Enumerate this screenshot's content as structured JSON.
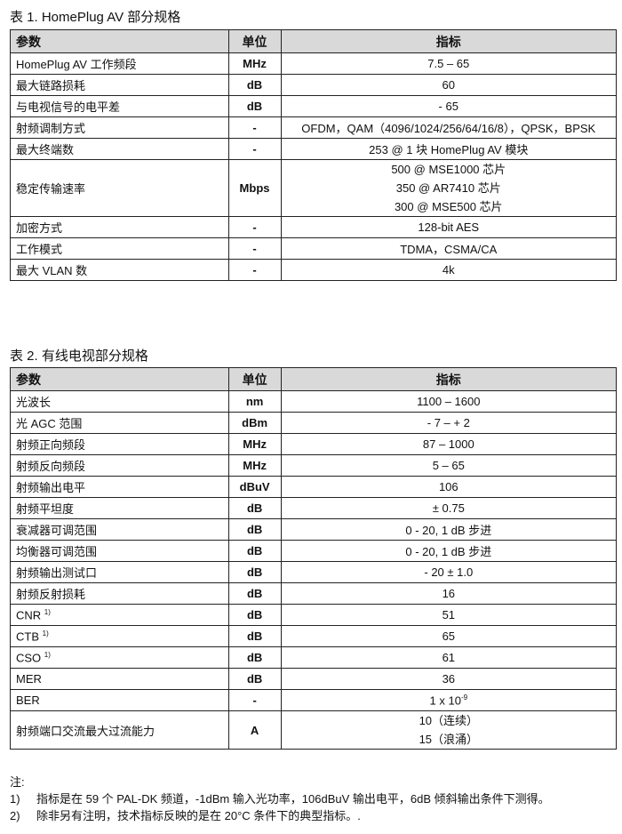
{
  "table1": {
    "caption": "表 1. HomePlug AV  部分规格",
    "headers": [
      "参数",
      "单位",
      "指标"
    ],
    "rows": [
      {
        "param": "HomePlug AV  工作频段",
        "unit": "MHz",
        "value": "7.5 – 65"
      },
      {
        "param": "最大链路损耗",
        "unit": "dB",
        "value": "60"
      },
      {
        "param": "与电视信号的电平差",
        "unit": "dB",
        "value": "- 65"
      },
      {
        "param": "射频调制方式",
        "unit": "-",
        "value": "OFDM，QAM（4096/1024/256/64/16/8），QPSK，BPSK"
      },
      {
        "param": "最大终端数",
        "unit": "-",
        "value": "253 @ 1 块 HomePlug AV  模块"
      },
      {
        "param": "稳定传输速率",
        "unit": "Mbps",
        "values": [
          "500 @ MSE1000 芯片",
          "350 @ AR7410 芯片",
          "300 @ MSE500 芯片"
        ]
      },
      {
        "param": "加密方式",
        "unit": "-",
        "value": "128-bit AES"
      },
      {
        "param": "工作模式",
        "unit": "-",
        "value": "TDMA，CSMA/CA"
      },
      {
        "param": "最大 VLAN 数",
        "unit": "-",
        "value": "4k"
      }
    ]
  },
  "table2": {
    "caption": "表 2.  有线电视部分规格",
    "headers": [
      "参数",
      "单位",
      "指标"
    ],
    "rows": [
      {
        "param": "光波长",
        "unit": "nm",
        "value": "1100 – 1600"
      },
      {
        "param": "光 AGC 范围",
        "unit": "dBm",
        "value": "- 7 – + 2"
      },
      {
        "param": "射频正向频段",
        "unit": "MHz",
        "value": "87 – 1000"
      },
      {
        "param": "射频反向频段",
        "unit": "MHz",
        "value": "5 – 65"
      },
      {
        "param": "射频输出电平",
        "unit": "dBuV",
        "value": "106"
      },
      {
        "param": "射频平坦度",
        "unit": "dB",
        "value": "± 0.75"
      },
      {
        "param": "衰减器可调范围",
        "unit": "dB",
        "value": "0  -  20, 1 dB 步进"
      },
      {
        "param": "均衡器可调范围",
        "unit": "dB",
        "value": "0  -  20, 1 dB 步进"
      },
      {
        "param": "射频输出测试口",
        "unit": "dB",
        "value": "- 20 ± 1.0"
      },
      {
        "param": "射频反射损耗",
        "unit": "dB",
        "value": "16"
      },
      {
        "param": "CNR",
        "sup": "1)",
        "unit": "dB",
        "value": "51"
      },
      {
        "param": "CTB",
        "sup": "1)",
        "unit": "dB",
        "value": "65"
      },
      {
        "param": "CSO",
        "sup": "1)",
        "unit": "dB",
        "value": "61"
      },
      {
        "param": "MER",
        "unit": "dB",
        "value": "36"
      },
      {
        "param": "BER",
        "unit": "-",
        "value": "1 x 10",
        "value_sup": "-9"
      },
      {
        "param": "射频端口交流最大过流能力",
        "unit": "A",
        "values": [
          "10（连续）",
          "15（浪涌）"
        ]
      }
    ]
  },
  "notes": {
    "title": "注:",
    "items": [
      {
        "num": "1)",
        "text": "指标是在 59 个 PAL-DK 频道，-1dBm 输入光功率，106dBuV 输出电平，6dB 倾斜输出条件下测得。"
      },
      {
        "num": "2)",
        "text": "除非另有注明，技术指标反映的是在 20°C  条件下的典型指标。."
      }
    ]
  }
}
